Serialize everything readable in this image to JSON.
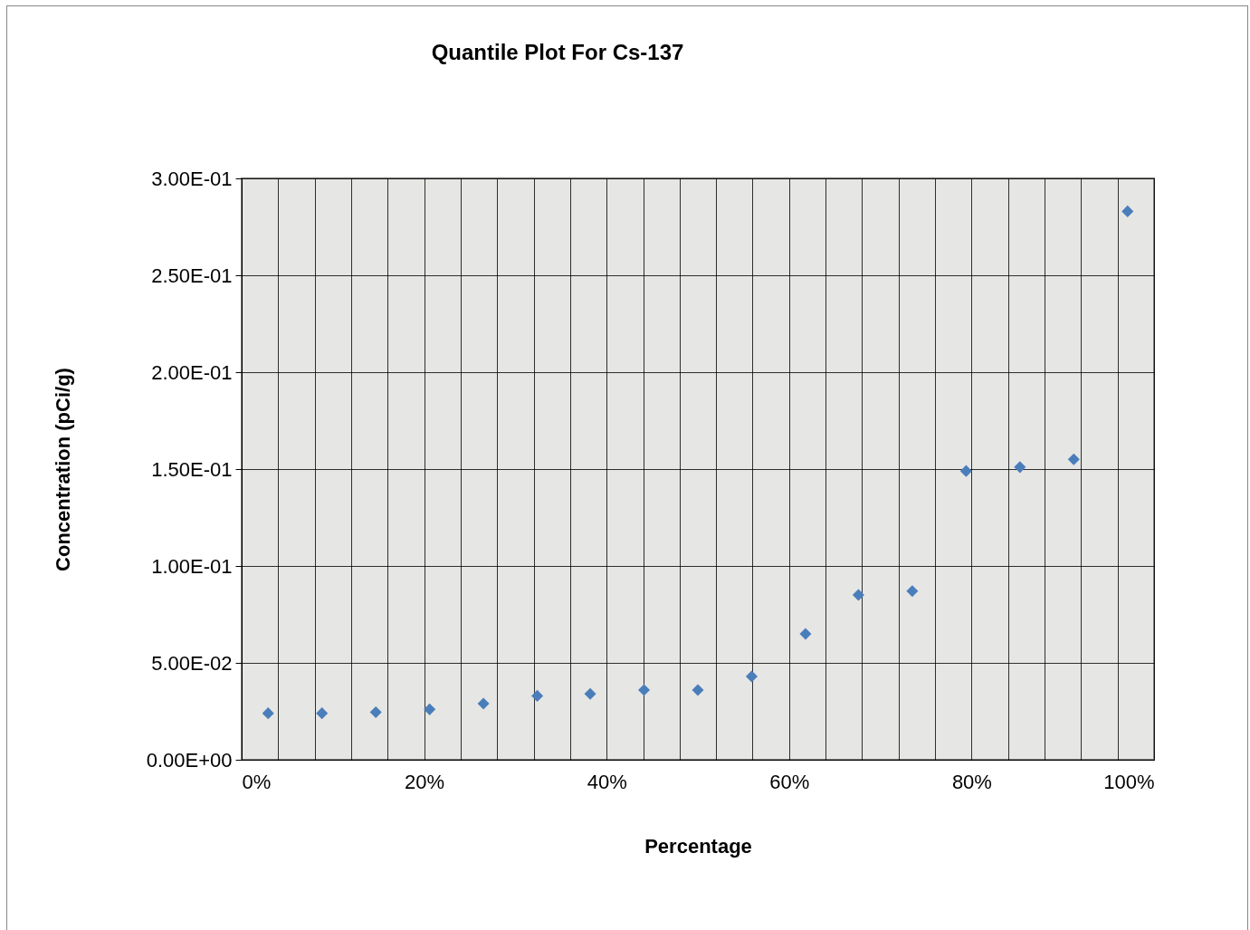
{
  "chart_data": {
    "type": "scatter",
    "title": "Quantile Plot For Cs-137",
    "xlabel": "Percentage",
    "ylabel": "Concentration (pCi/g)",
    "x": [
      2.9,
      8.8,
      14.7,
      20.6,
      26.5,
      32.4,
      38.2,
      44.1,
      50,
      55.9,
      61.8,
      67.6,
      73.5,
      79.4,
      85.3,
      91.2,
      97.1
    ],
    "series": [
      {
        "color": "#4a7ebb",
        "values": [
          0.024,
          0.024,
          0.0245,
          0.026,
          0.029,
          0.033,
          0.034,
          0.036,
          0.036,
          0.043,
          0.065,
          0.085,
          0.087,
          0.149,
          0.151,
          0.155,
          0.283
        ]
      }
    ],
    "xlim": [
      0,
      100
    ],
    "xticks": [
      {
        "value": 0,
        "label": "0%"
      },
      {
        "value": 4,
        "label": null
      },
      {
        "value": 8,
        "label": null
      },
      {
        "value": 12,
        "label": null
      },
      {
        "value": 16,
        "label": null
      },
      {
        "value": 20,
        "label": "20%"
      },
      {
        "value": 24,
        "label": null
      },
      {
        "value": 28,
        "label": null
      },
      {
        "value": 32,
        "label": null
      },
      {
        "value": 36,
        "label": null
      },
      {
        "value": 40,
        "label": "40%"
      },
      {
        "value": 44,
        "label": null
      },
      {
        "value": 48,
        "label": null
      },
      {
        "value": 52,
        "label": null
      },
      {
        "value": 56,
        "label": null
      },
      {
        "value": 60,
        "label": "60%"
      },
      {
        "value": 64,
        "label": null
      },
      {
        "value": 68,
        "label": null
      },
      {
        "value": 72,
        "label": null
      },
      {
        "value": 76,
        "label": null
      },
      {
        "value": 80,
        "label": "80%"
      },
      {
        "value": 84,
        "label": null
      },
      {
        "value": 88,
        "label": null
      },
      {
        "value": 92,
        "label": null
      },
      {
        "value": 96,
        "label": null
      },
      {
        "value": 100,
        "label": "100%"
      }
    ],
    "ylim": [
      0,
      0.3
    ],
    "yticks": [
      {
        "value": 0,
        "label": "0.00E+00"
      },
      {
        "value": 0.05,
        "label": "5.00E-02"
      },
      {
        "value": 0.1,
        "label": "1.00E-01"
      },
      {
        "value": 0.15,
        "label": "1.50E-01"
      },
      {
        "value": 0.2,
        "label": "2.00E-01"
      },
      {
        "value": 0.25,
        "label": "2.50E-01"
      },
      {
        "value": 0.3,
        "label": "3.00E-01"
      }
    ],
    "grid": true,
    "marker": "diamond"
  }
}
